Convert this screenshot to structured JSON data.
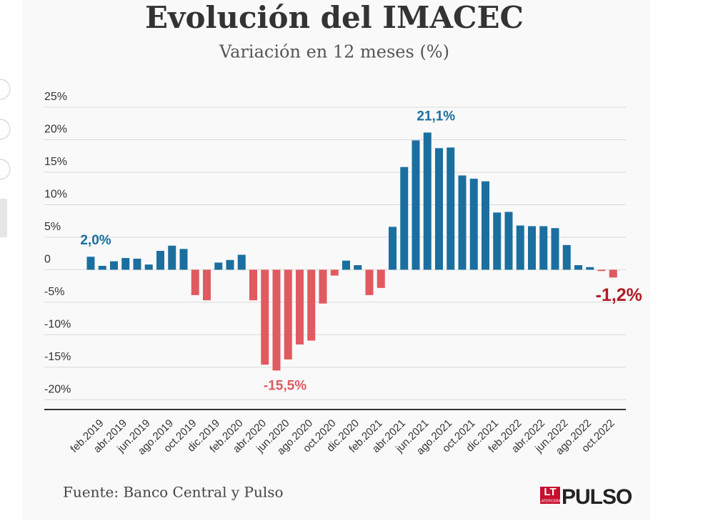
{
  "chart_data": {
    "type": "bar",
    "title": "Evolución del IMACEC",
    "subtitle": "Variación en 12 meses (%)",
    "categories": [
      "feb.2019",
      null,
      "abr.2019",
      null,
      "jun.2019",
      null,
      "ago.2019",
      null,
      "oct.2019",
      null,
      "dic.2019",
      null,
      "feb.2020",
      null,
      "abr.2020",
      null,
      "jun.2020",
      null,
      "ago.2020",
      null,
      "oct.2020",
      null,
      "dic.2020",
      null,
      "feb.2021",
      null,
      "abr.2021",
      null,
      "jun.2021",
      null,
      "ago.2021",
      null,
      "oct.2021",
      null,
      "dic.2021",
      null,
      "feb.2022",
      null,
      "abr.2022",
      null,
      "jun.2022",
      null,
      "ago.2022",
      null,
      "oct.2022",
      null
    ],
    "values": [
      2.0,
      0.6,
      1.3,
      1.8,
      1.7,
      0.8,
      2.9,
      3.7,
      3.2,
      -3.9,
      -4.7,
      1.1,
      1.5,
      2.3,
      -4.7,
      -14.6,
      -15.5,
      -13.8,
      -11.5,
      -10.9,
      -5.2,
      -0.9,
      1.4,
      0.7,
      -3.9,
      -2.8,
      6.6,
      15.8,
      19.9,
      21.1,
      18.7,
      18.8,
      14.5,
      14.0,
      13.6,
      8.8,
      8.9,
      6.8,
      6.7,
      6.7,
      6.4,
      3.8,
      0.7,
      0.4,
      -0.2,
      -1.2
    ],
    "value_labels": [
      "2,0%",
      null,
      null,
      null,
      null,
      null,
      null,
      null,
      null,
      null,
      null,
      null,
      null,
      null,
      null,
      null,
      "-15,5%",
      null,
      null,
      null,
      null,
      null,
      null,
      null,
      null,
      null,
      null,
      null,
      null,
      "21,1%",
      null,
      null,
      null,
      null,
      null,
      null,
      null,
      null,
      null,
      null,
      null,
      null,
      null,
      null,
      null,
      "-1,2%"
    ],
    "color_positive": "#1b6f9f",
    "color_negative": "#e05a60",
    "ylim": [
      -21.5,
      25
    ],
    "yticks": [
      {
        "value": 25,
        "label": "25%"
      },
      {
        "value": 20,
        "label": "20%"
      },
      {
        "value": 15,
        "label": "15%"
      },
      {
        "value": 10,
        "label": "10%"
      },
      {
        "value": 5,
        "label": "5%"
      },
      0,
      {
        "value": -5,
        "label": "-5%"
      },
      {
        "value": -10,
        "label": "-10%"
      },
      {
        "value": -15,
        "label": "-15%"
      },
      {
        "value": -20,
        "label": "-20%"
      }
    ],
    "grid": true,
    "source": "Fuente: Banco Central y Pulso",
    "logo": {
      "mark": "LT",
      "small": "LATERCERA",
      "name": "PULSO"
    }
  }
}
